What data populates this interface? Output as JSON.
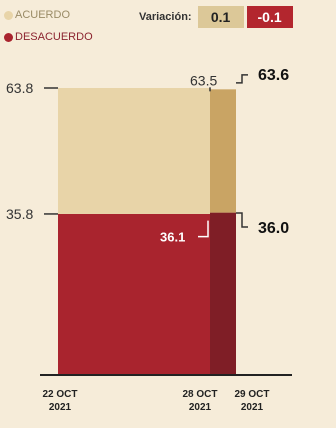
{
  "legend": [
    {
      "label": "ACUERDO",
      "color": "#e8d4a8"
    },
    {
      "label": "DESACUERDO",
      "color": "#a9242e"
    }
  ],
  "variacion": {
    "label": "Variación:",
    "pos": "0.1",
    "neg": "-0.1"
  },
  "chart_data": {
    "type": "bar",
    "stacked": true,
    "categories": [
      "22 OCT 2021",
      "28 OCT 2021",
      "29 OCT 2021"
    ],
    "series": [
      {
        "name": "DESACUERDO",
        "values": [
          35.8,
          36.1,
          36.0
        ],
        "labels": [
          "35.8",
          "36.1",
          "36.0"
        ],
        "color": "#a9242e"
      },
      {
        "name": "ACUERDO",
        "values": [
          63.8,
          63.5,
          63.6
        ],
        "labels": [
          "63.8",
          "63.5",
          "63.6"
        ],
        "color": "#e8d4a8"
      }
    ],
    "ylim": [
      0,
      100
    ]
  },
  "colors": {
    "acuerdo_light": "#e8d4a8",
    "acuerdo_dark": "#c9a464",
    "desacuerdo": "#a9242e",
    "desacuerdo_dark": "#7f1e26",
    "axis": "#222222"
  }
}
